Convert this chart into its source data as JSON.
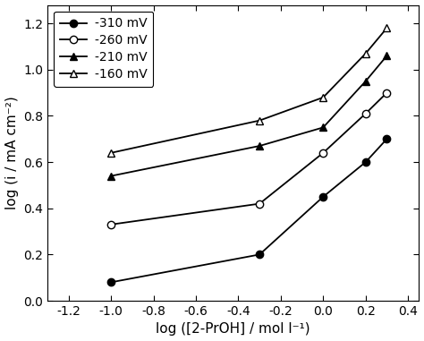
{
  "series": [
    {
      "label": "-310 mV",
      "marker": "o",
      "filled": true,
      "x": [
        -1.0,
        -0.3,
        0.0,
        0.2,
        0.3
      ],
      "y": [
        0.08,
        0.2,
        0.45,
        0.6,
        0.7
      ]
    },
    {
      "label": "-260 mV",
      "marker": "o",
      "filled": false,
      "x": [
        -1.0,
        -0.3,
        0.0,
        0.2,
        0.3
      ],
      "y": [
        0.33,
        0.42,
        0.64,
        0.81,
        0.9
      ]
    },
    {
      "label": "-210 mV",
      "marker": "^",
      "filled": true,
      "x": [
        -1.0,
        -0.3,
        0.0,
        0.2,
        0.3
      ],
      "y": [
        0.54,
        0.67,
        0.75,
        0.95,
        1.06
      ]
    },
    {
      "label": "-160 mV",
      "marker": "^",
      "filled": false,
      "x": [
        -1.0,
        -0.3,
        0.0,
        0.2,
        0.3
      ],
      "y": [
        0.64,
        0.78,
        0.88,
        1.07,
        1.18
      ]
    }
  ],
  "xlabel": "log ([2-PrOH] / mol l⁻¹)",
  "ylabel": "log (i / mA cm⁻²)",
  "xlim": [
    -1.3,
    0.45
  ],
  "ylim": [
    0.0,
    1.28
  ],
  "xticks": [
    -1.2,
    -1.0,
    -0.8,
    -0.6,
    -0.4,
    -0.2,
    0.0,
    0.2,
    0.4
  ],
  "yticks": [
    0.0,
    0.2,
    0.4,
    0.6,
    0.8,
    1.0,
    1.2
  ],
  "color": "black",
  "markersize": 6,
  "linewidth": 1.3,
  "legend_fontsize": 10,
  "tick_fontsize": 10,
  "label_fontsize": 11
}
